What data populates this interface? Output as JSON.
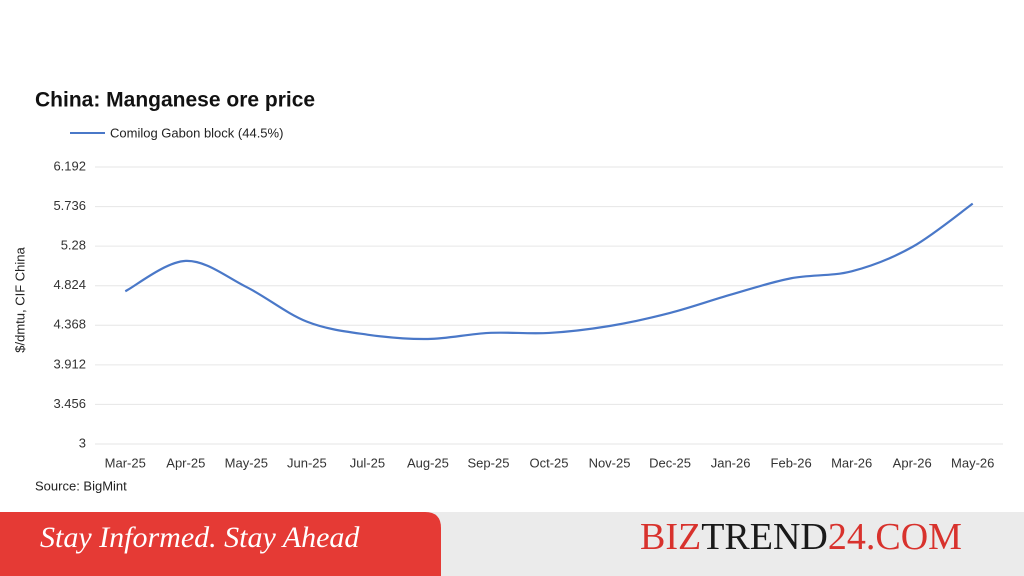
{
  "chart_data": {
    "type": "line",
    "title": "China: Manganese ore price",
    "y_label": "$/dmtu, CIF China",
    "source": "Source:  BigMint",
    "categories": [
      "Mar-25",
      "Apr-25",
      "May-25",
      "Jun-25",
      "Jul-25",
      "Aug-25",
      "Sep-25",
      "Oct-25",
      "Nov-25",
      "Dec-25",
      "Jan-26",
      "Feb-26",
      "Mar-26",
      "Apr-26",
      "May-26"
    ],
    "series": [
      {
        "name": "Comilog Gabon block (44.5%)",
        "color": "#4a78c8",
        "values": [
          4.76,
          5.11,
          4.81,
          4.41,
          4.26,
          4.21,
          4.28,
          4.28,
          4.36,
          4.51,
          4.72,
          4.91,
          4.99,
          5.27,
          5.77
        ]
      }
    ],
    "ylim": [
      3,
      6.192
    ],
    "yticks": [
      3,
      3.456,
      3.912,
      4.368,
      4.824,
      5.28,
      5.736,
      6.192
    ],
    "grid": true
  },
  "banner": {
    "tagline": "Stay Informed. Stay Ahead",
    "brand": [
      "BIZ",
      "TREND",
      "24.COM"
    ]
  }
}
